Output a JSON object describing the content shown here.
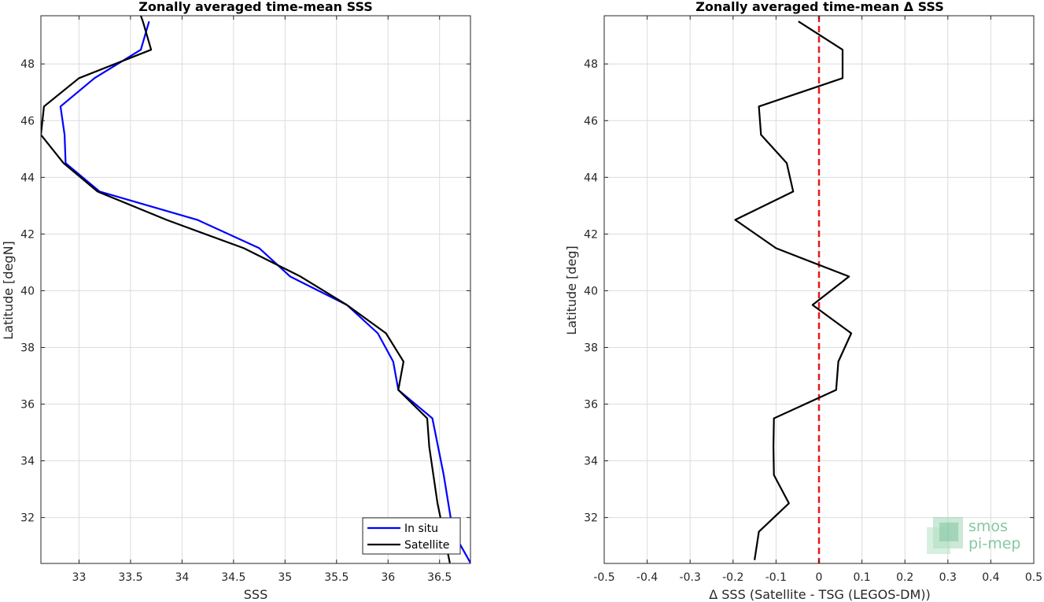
{
  "chart_data": [
    {
      "type": "line",
      "title": "Zonally averaged time-mean SSS",
      "xlabel": "SSS",
      "ylabel": "Latitude [degN]",
      "xlim": [
        32.63,
        36.8
      ],
      "ylim": [
        30.38,
        49.7
      ],
      "xticks": [
        33,
        33.5,
        34,
        34.5,
        35,
        35.5,
        36,
        36.5
      ],
      "yticks": [
        32,
        34,
        36,
        38,
        40,
        42,
        44,
        46,
        48
      ],
      "grid": true,
      "legend_position": "bottom-right",
      "series": [
        {
          "name": "In situ",
          "color": "#0000ff",
          "x": [
            36.8,
            36.63,
            36.54,
            36.43,
            36.1,
            36.05,
            35.9,
            35.6,
            35.05,
            34.75,
            34.15,
            33.2,
            32.87,
            32.86,
            32.82,
            33.15,
            33.6,
            33.68
          ],
          "y": [
            30.4,
            31.5,
            33.5,
            35.5,
            36.5,
            37.5,
            38.5,
            39.5,
            40.5,
            41.5,
            42.5,
            43.5,
            44.5,
            45.5,
            46.5,
            47.5,
            48.5,
            49.5
          ]
        },
        {
          "name": "Satellite",
          "color": "#000000",
          "x": [
            36.6,
            36.48,
            36.4,
            36.38,
            36.1,
            36.15,
            35.98,
            35.6,
            35.15,
            34.6,
            33.85,
            33.18,
            32.85,
            32.63,
            32.66,
            33.0,
            33.7,
            33.62,
            33.6
          ],
          "y": [
            30.4,
            32.5,
            34.5,
            35.5,
            36.5,
            37.5,
            38.5,
            39.5,
            40.5,
            41.5,
            42.5,
            43.5,
            44.5,
            45.5,
            46.5,
            47.5,
            48.5,
            49.5,
            49.7
          ]
        }
      ]
    },
    {
      "type": "line",
      "title": "Zonally averaged time-mean Δ SSS",
      "xlabel": "Δ SSS (Satellite - TSG (LEGOS-DM))",
      "ylabel": "Latitude [deg]",
      "xlim": [
        -0.5,
        0.5
      ],
      "ylim": [
        30.38,
        49.7
      ],
      "xticks": [
        -0.5,
        -0.4,
        -0.3,
        -0.2,
        -0.1,
        0,
        0.1,
        0.2,
        0.3,
        0.4,
        0.5
      ],
      "yticks": [
        32,
        34,
        36,
        38,
        40,
        42,
        44,
        46,
        48
      ],
      "grid": true,
      "reference_line": {
        "x": 0,
        "color": "#e41a1c",
        "style": "dashed"
      },
      "series": [
        {
          "color": "#000000",
          "x": [
            -0.15,
            -0.14,
            -0.07,
            -0.105,
            -0.106,
            -0.105,
            0.04,
            0.045,
            0.075,
            -0.015,
            0.07,
            -0.1,
            -0.195,
            -0.06,
            -0.075,
            -0.135,
            -0.14,
            0.055,
            0.055,
            -0.048
          ],
          "y": [
            30.5,
            31.5,
            32.5,
            33.5,
            34.5,
            35.5,
            36.5,
            37.5,
            38.5,
            39.5,
            40.5,
            41.5,
            42.5,
            43.5,
            44.5,
            45.5,
            46.5,
            47.5,
            48.5,
            49.5
          ]
        }
      ]
    }
  ],
  "watermark": {
    "line1": "smos",
    "line2": "pi-mep",
    "color": "#6fbf92"
  }
}
